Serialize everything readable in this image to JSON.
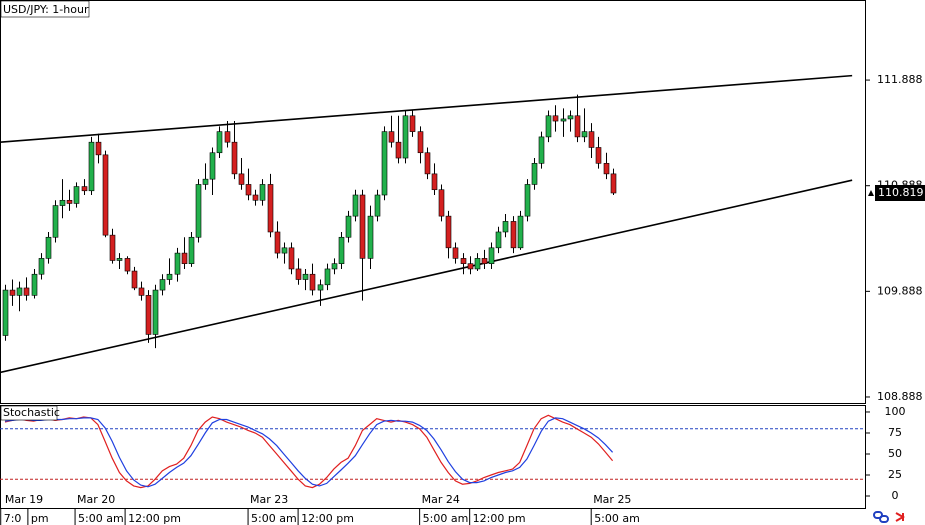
{
  "chart_data": [
    {
      "type": "candlestick",
      "title": "USD/JPY: 1-hour",
      "up_color": "#22b14c",
      "down_color": "#d42020",
      "xlim": [
        -0.7,
        120.3
      ],
      "ylim": [
        108.831,
        112.646
      ],
      "yticks": [
        111.888,
        110.888,
        109.888,
        108.888
      ],
      "candles": [
        [
          109.47,
          109.95,
          109.42,
          109.9
        ],
        [
          109.9,
          110.0,
          109.75,
          109.85
        ],
        [
          109.85,
          109.98,
          109.7,
          109.92
        ],
        [
          109.92,
          110.02,
          109.8,
          109.85
        ],
        [
          109.85,
          110.1,
          109.82,
          110.05
        ],
        [
          110.05,
          110.25,
          110.0,
          110.2
        ],
        [
          110.2,
          110.45,
          110.15,
          110.4
        ],
        [
          110.4,
          110.75,
          110.35,
          110.7
        ],
        [
          110.7,
          110.95,
          110.58,
          110.75
        ],
        [
          110.75,
          110.85,
          110.65,
          110.72
        ],
        [
          110.72,
          110.92,
          110.68,
          110.88
        ],
        [
          110.88,
          110.95,
          110.8,
          110.84
        ],
        [
          110.84,
          111.35,
          110.8,
          111.3
        ],
        [
          111.3,
          111.38,
          111.1,
          111.18
        ],
        [
          111.18,
          111.22,
          110.4,
          110.42
        ],
        [
          110.42,
          110.48,
          110.15,
          110.18
        ],
        [
          110.18,
          110.25,
          110.1,
          110.2
        ],
        [
          110.2,
          110.22,
          110.05,
          110.08
        ],
        [
          110.08,
          110.12,
          109.9,
          109.92
        ],
        [
          109.92,
          109.98,
          109.8,
          109.85
        ],
        [
          109.85,
          109.9,
          109.4,
          109.48
        ],
        [
          109.48,
          109.95,
          109.35,
          109.9
        ],
        [
          109.9,
          110.05,
          109.85,
          110.0
        ],
        [
          110.0,
          110.2,
          109.95,
          110.05
        ],
        [
          110.05,
          110.3,
          109.98,
          110.25
        ],
        [
          110.25,
          110.4,
          110.1,
          110.15
        ],
        [
          110.15,
          110.45,
          110.12,
          110.4
        ],
        [
          110.4,
          110.95,
          110.35,
          110.9
        ],
        [
          110.9,
          111.1,
          110.85,
          110.95
        ],
        [
          110.95,
          111.25,
          110.8,
          111.2
        ],
        [
          111.2,
          111.45,
          111.15,
          111.4
        ],
        [
          111.4,
          111.5,
          111.25,
          111.3
        ],
        [
          111.3,
          111.5,
          110.95,
          111.0
        ],
        [
          111.0,
          111.15,
          110.85,
          110.9
        ],
        [
          110.9,
          111.05,
          110.75,
          110.8
        ],
        [
          110.8,
          110.85,
          110.7,
          110.75
        ],
        [
          110.75,
          110.95,
          110.7,
          110.9
        ],
        [
          110.9,
          111.0,
          110.4,
          110.45
        ],
        [
          110.45,
          110.55,
          110.2,
          110.25
        ],
        [
          110.25,
          110.35,
          110.15,
          110.3
        ],
        [
          110.3,
          110.35,
          110.05,
          110.1
        ],
        [
          110.1,
          110.2,
          109.95,
          110.0
        ],
        [
          110.0,
          110.1,
          109.9,
          110.05
        ],
        [
          110.05,
          110.15,
          109.85,
          109.9
        ],
        [
          109.9,
          110.0,
          109.75,
          109.95
        ],
        [
          109.95,
          110.15,
          109.9,
          110.1
        ],
        [
          110.1,
          110.2,
          110.05,
          110.15
        ],
        [
          110.15,
          110.45,
          110.1,
          110.4
        ],
        [
          110.4,
          110.65,
          110.35,
          110.6
        ],
        [
          110.6,
          110.85,
          110.55,
          110.8
        ],
        [
          110.8,
          110.85,
          109.8,
          110.2
        ],
        [
          110.2,
          110.7,
          110.1,
          110.6
        ],
        [
          110.6,
          110.85,
          110.55,
          110.8
        ],
        [
          110.8,
          111.45,
          110.75,
          111.4
        ],
        [
          111.4,
          111.55,
          111.25,
          111.3
        ],
        [
          111.3,
          111.55,
          111.1,
          111.15
        ],
        [
          111.15,
          111.6,
          111.1,
          111.55
        ],
        [
          111.55,
          111.6,
          111.35,
          111.4
        ],
        [
          111.4,
          111.45,
          111.1,
          111.2
        ],
        [
          111.2,
          111.25,
          110.95,
          111.0
        ],
        [
          111.0,
          111.1,
          110.8,
          110.85
        ],
        [
          110.85,
          110.9,
          110.55,
          110.6
        ],
        [
          110.6,
          110.65,
          110.2,
          110.3
        ],
        [
          110.3,
          110.35,
          110.15,
          110.2
        ],
        [
          110.2,
          110.25,
          110.05,
          110.15
        ],
        [
          110.15,
          110.22,
          110.05,
          110.1
        ],
        [
          110.1,
          110.25,
          110.08,
          110.2
        ],
        [
          110.2,
          110.28,
          110.1,
          110.15
        ],
        [
          110.15,
          110.35,
          110.1,
          110.3
        ],
        [
          110.3,
          110.5,
          110.25,
          110.45
        ],
        [
          110.45,
          110.62,
          110.4,
          110.55
        ],
        [
          110.55,
          110.6,
          110.25,
          110.3
        ],
        [
          110.3,
          110.65,
          110.28,
          110.6
        ],
        [
          110.6,
          110.95,
          110.55,
          110.9
        ],
        [
          110.9,
          111.15,
          110.85,
          111.1
        ],
        [
          111.1,
          111.4,
          111.05,
          111.35
        ],
        [
          111.35,
          111.6,
          111.3,
          111.55
        ],
        [
          111.55,
          111.65,
          111.4,
          111.5
        ],
        [
          111.5,
          111.62,
          111.35,
          111.52
        ],
        [
          111.52,
          111.6,
          111.4,
          111.55
        ],
        [
          111.55,
          111.75,
          111.3,
          111.35
        ],
        [
          111.35,
          111.62,
          111.3,
          111.4
        ],
        [
          111.4,
          111.48,
          111.15,
          111.25
        ],
        [
          111.25,
          111.35,
          111.05,
          111.1
        ],
        [
          111.1,
          111.2,
          110.95,
          111.0
        ],
        [
          111.0,
          111.05,
          110.8,
          110.819
        ]
      ],
      "trendlines": [
        {
          "start": [
            -0.7,
            111.3
          ],
          "end": [
            118.5,
            111.93
          ]
        },
        {
          "start": [
            -0.7,
            109.12
          ],
          "end": [
            118.5,
            110.94
          ]
        }
      ],
      "date_labels": [
        {
          "index": -0.3,
          "label": "Mar 19"
        },
        {
          "index": 9.8,
          "label": "Mar 20"
        },
        {
          "index": 34,
          "label": "Mar 23"
        },
        {
          "index": 58,
          "label": "Mar 24"
        },
        {
          "index": 82,
          "label": "Mar 25"
        }
      ],
      "time_labels": [
        {
          "index": -0.6,
          "label": "7:0"
        },
        {
          "index": 3.2,
          "label": "pm"
        },
        {
          "index": 9.8,
          "label": "5:00 am"
        },
        {
          "index": 16.8,
          "label": "12:00 pm"
        },
        {
          "index": 34,
          "label": "5:00 am"
        },
        {
          "index": 41,
          "label": "12:00 pm"
        },
        {
          "index": 58,
          "label": "5:00 am"
        },
        {
          "index": 65,
          "label": "12:00 pm"
        },
        {
          "index": 82,
          "label": "5:00 am"
        }
      ]
    },
    {
      "type": "line",
      "title": "Stochastic",
      "ylim": [
        -10.7,
        108.3
      ],
      "yticks": [
        100,
        75,
        50,
        25,
        0
      ],
      "levels": [
        80,
        20
      ],
      "series": [
        {
          "color": "#e02020",
          "values": [
            88,
            90,
            92,
            90,
            89,
            91,
            92,
            90,
            91,
            93,
            92,
            94,
            93,
            85,
            65,
            45,
            28,
            18,
            12,
            10,
            12,
            20,
            30,
            35,
            38,
            45,
            60,
            78,
            88,
            94,
            92,
            88,
            85,
            82,
            78,
            75,
            70,
            60,
            50,
            40,
            30,
            20,
            12,
            10,
            14,
            22,
            32,
            40,
            45,
            60,
            78,
            85,
            92,
            90,
            88,
            90,
            88,
            85,
            80,
            70,
            55,
            40,
            28,
            18,
            14,
            15,
            18,
            22,
            25,
            28,
            30,
            32,
            40,
            60,
            80,
            92,
            96,
            92,
            88,
            85,
            80,
            75,
            70,
            62,
            52,
            42
          ]
        },
        {
          "color": "#2040e0",
          "values": [
            89,
            90,
            91,
            91,
            90,
            90,
            91,
            91,
            91,
            92,
            92,
            93,
            93,
            91,
            81,
            65,
            46,
            30,
            19,
            13,
            11,
            14,
            21,
            28,
            34,
            39,
            48,
            61,
            75,
            87,
            91,
            91,
            88,
            85,
            82,
            78,
            74,
            68,
            60,
            50,
            40,
            30,
            21,
            14,
            12,
            15,
            23,
            31,
            39,
            48,
            61,
            74,
            85,
            89,
            90,
            89,
            89,
            88,
            84,
            78,
            68,
            55,
            41,
            29,
            20,
            16,
            16,
            18,
            22,
            25,
            28,
            30,
            34,
            44,
            60,
            77,
            89,
            93,
            92,
            88,
            84,
            80,
            75,
            69,
            61,
            52
          ]
        }
      ]
    }
  ]
}
